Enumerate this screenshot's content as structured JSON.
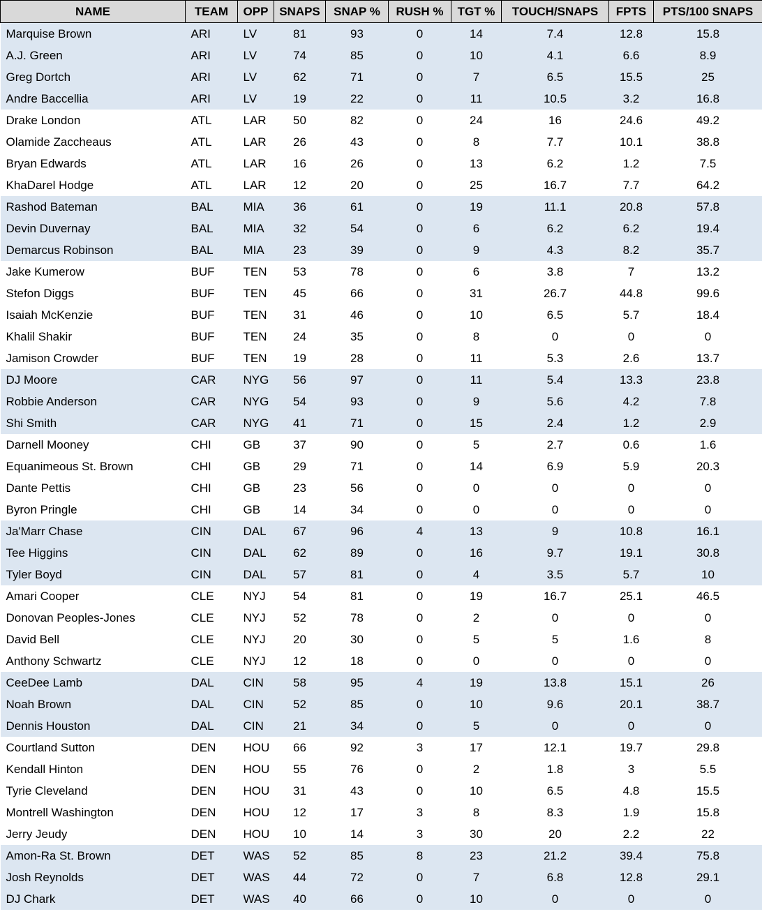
{
  "colors": {
    "header_bg": "#d9d9d9",
    "header_border": "#000000",
    "band_blue": "#dce6f1",
    "band_white": "#ffffff",
    "text": "#000000"
  },
  "table": {
    "columns": [
      {
        "key": "name",
        "label": "NAME"
      },
      {
        "key": "team",
        "label": "TEAM"
      },
      {
        "key": "opp",
        "label": "OPP"
      },
      {
        "key": "snaps",
        "label": "SNAPS"
      },
      {
        "key": "snap_pct",
        "label": "SNAP %"
      },
      {
        "key": "rush_pct",
        "label": "RUSH %"
      },
      {
        "key": "tgt_pct",
        "label": "TGT %"
      },
      {
        "key": "touch_per_snaps",
        "label": "TOUCH/SNAPS"
      },
      {
        "key": "fpts",
        "label": "FPTS"
      },
      {
        "key": "pts_per_100_snaps",
        "label": "PTS/100 SNAPS"
      }
    ],
    "rows": [
      {
        "name": "Marquise Brown",
        "team": "ARI",
        "opp": "LV",
        "snaps": "81",
        "snap_pct": "93",
        "rush_pct": "0",
        "tgt_pct": "14",
        "touch_per_snaps": "7.4",
        "fpts": "12.8",
        "pts_per_100_snaps": "15.8"
      },
      {
        "name": "A.J. Green",
        "team": "ARI",
        "opp": "LV",
        "snaps": "74",
        "snap_pct": "85",
        "rush_pct": "0",
        "tgt_pct": "10",
        "touch_per_snaps": "4.1",
        "fpts": "6.6",
        "pts_per_100_snaps": "8.9"
      },
      {
        "name": "Greg Dortch",
        "team": "ARI",
        "opp": "LV",
        "snaps": "62",
        "snap_pct": "71",
        "rush_pct": "0",
        "tgt_pct": "7",
        "touch_per_snaps": "6.5",
        "fpts": "15.5",
        "pts_per_100_snaps": "25"
      },
      {
        "name": "Andre Baccellia",
        "team": "ARI",
        "opp": "LV",
        "snaps": "19",
        "snap_pct": "22",
        "rush_pct": "0",
        "tgt_pct": "11",
        "touch_per_snaps": "10.5",
        "fpts": "3.2",
        "pts_per_100_snaps": "16.8"
      },
      {
        "name": "Drake London",
        "team": "ATL",
        "opp": "LAR",
        "snaps": "50",
        "snap_pct": "82",
        "rush_pct": "0",
        "tgt_pct": "24",
        "touch_per_snaps": "16",
        "fpts": "24.6",
        "pts_per_100_snaps": "49.2"
      },
      {
        "name": "Olamide Zaccheaus",
        "team": "ATL",
        "opp": "LAR",
        "snaps": "26",
        "snap_pct": "43",
        "rush_pct": "0",
        "tgt_pct": "8",
        "touch_per_snaps": "7.7",
        "fpts": "10.1",
        "pts_per_100_snaps": "38.8"
      },
      {
        "name": "Bryan Edwards",
        "team": "ATL",
        "opp": "LAR",
        "snaps": "16",
        "snap_pct": "26",
        "rush_pct": "0",
        "tgt_pct": "13",
        "touch_per_snaps": "6.2",
        "fpts": "1.2",
        "pts_per_100_snaps": "7.5"
      },
      {
        "name": "KhaDarel Hodge",
        "team": "ATL",
        "opp": "LAR",
        "snaps": "12",
        "snap_pct": "20",
        "rush_pct": "0",
        "tgt_pct": "25",
        "touch_per_snaps": "16.7",
        "fpts": "7.7",
        "pts_per_100_snaps": "64.2"
      },
      {
        "name": "Rashod Bateman",
        "team": "BAL",
        "opp": "MIA",
        "snaps": "36",
        "snap_pct": "61",
        "rush_pct": "0",
        "tgt_pct": "19",
        "touch_per_snaps": "11.1",
        "fpts": "20.8",
        "pts_per_100_snaps": "57.8"
      },
      {
        "name": "Devin Duvernay",
        "team": "BAL",
        "opp": "MIA",
        "snaps": "32",
        "snap_pct": "54",
        "rush_pct": "0",
        "tgt_pct": "6",
        "touch_per_snaps": "6.2",
        "fpts": "6.2",
        "pts_per_100_snaps": "19.4"
      },
      {
        "name": "Demarcus Robinson",
        "team": "BAL",
        "opp": "MIA",
        "snaps": "23",
        "snap_pct": "39",
        "rush_pct": "0",
        "tgt_pct": "9",
        "touch_per_snaps": "4.3",
        "fpts": "8.2",
        "pts_per_100_snaps": "35.7"
      },
      {
        "name": "Jake Kumerow",
        "team": "BUF",
        "opp": "TEN",
        "snaps": "53",
        "snap_pct": "78",
        "rush_pct": "0",
        "tgt_pct": "6",
        "touch_per_snaps": "3.8",
        "fpts": "7",
        "pts_per_100_snaps": "13.2"
      },
      {
        "name": "Stefon Diggs",
        "team": "BUF",
        "opp": "TEN",
        "snaps": "45",
        "snap_pct": "66",
        "rush_pct": "0",
        "tgt_pct": "31",
        "touch_per_snaps": "26.7",
        "fpts": "44.8",
        "pts_per_100_snaps": "99.6"
      },
      {
        "name": "Isaiah McKenzie",
        "team": "BUF",
        "opp": "TEN",
        "snaps": "31",
        "snap_pct": "46",
        "rush_pct": "0",
        "tgt_pct": "10",
        "touch_per_snaps": "6.5",
        "fpts": "5.7",
        "pts_per_100_snaps": "18.4"
      },
      {
        "name": "Khalil Shakir",
        "team": "BUF",
        "opp": "TEN",
        "snaps": "24",
        "snap_pct": "35",
        "rush_pct": "0",
        "tgt_pct": "8",
        "touch_per_snaps": "0",
        "fpts": "0",
        "pts_per_100_snaps": "0"
      },
      {
        "name": "Jamison Crowder",
        "team": "BUF",
        "opp": "TEN",
        "snaps": "19",
        "snap_pct": "28",
        "rush_pct": "0",
        "tgt_pct": "11",
        "touch_per_snaps": "5.3",
        "fpts": "2.6",
        "pts_per_100_snaps": "13.7"
      },
      {
        "name": "DJ Moore",
        "team": "CAR",
        "opp": "NYG",
        "snaps": "56",
        "snap_pct": "97",
        "rush_pct": "0",
        "tgt_pct": "11",
        "touch_per_snaps": "5.4",
        "fpts": "13.3",
        "pts_per_100_snaps": "23.8"
      },
      {
        "name": "Robbie Anderson",
        "team": "CAR",
        "opp": "NYG",
        "snaps": "54",
        "snap_pct": "93",
        "rush_pct": "0",
        "tgt_pct": "9",
        "touch_per_snaps": "5.6",
        "fpts": "4.2",
        "pts_per_100_snaps": "7.8"
      },
      {
        "name": "Shi Smith",
        "team": "CAR",
        "opp": "NYG",
        "snaps": "41",
        "snap_pct": "71",
        "rush_pct": "0",
        "tgt_pct": "15",
        "touch_per_snaps": "2.4",
        "fpts": "1.2",
        "pts_per_100_snaps": "2.9"
      },
      {
        "name": "Darnell Mooney",
        "team": "CHI",
        "opp": "GB",
        "snaps": "37",
        "snap_pct": "90",
        "rush_pct": "0",
        "tgt_pct": "5",
        "touch_per_snaps": "2.7",
        "fpts": "0.6",
        "pts_per_100_snaps": "1.6"
      },
      {
        "name": "Equanimeous St. Brown",
        "team": "CHI",
        "opp": "GB",
        "snaps": "29",
        "snap_pct": "71",
        "rush_pct": "0",
        "tgt_pct": "14",
        "touch_per_snaps": "6.9",
        "fpts": "5.9",
        "pts_per_100_snaps": "20.3"
      },
      {
        "name": "Dante Pettis",
        "team": "CHI",
        "opp": "GB",
        "snaps": "23",
        "snap_pct": "56",
        "rush_pct": "0",
        "tgt_pct": "0",
        "touch_per_snaps": "0",
        "fpts": "0",
        "pts_per_100_snaps": "0"
      },
      {
        "name": "Byron Pringle",
        "team": "CHI",
        "opp": "GB",
        "snaps": "14",
        "snap_pct": "34",
        "rush_pct": "0",
        "tgt_pct": "0",
        "touch_per_snaps": "0",
        "fpts": "0",
        "pts_per_100_snaps": "0"
      },
      {
        "name": "Ja'Marr Chase",
        "team": "CIN",
        "opp": "DAL",
        "snaps": "67",
        "snap_pct": "96",
        "rush_pct": "4",
        "tgt_pct": "13",
        "touch_per_snaps": "9",
        "fpts": "10.8",
        "pts_per_100_snaps": "16.1"
      },
      {
        "name": "Tee Higgins",
        "team": "CIN",
        "opp": "DAL",
        "snaps": "62",
        "snap_pct": "89",
        "rush_pct": "0",
        "tgt_pct": "16",
        "touch_per_snaps": "9.7",
        "fpts": "19.1",
        "pts_per_100_snaps": "30.8"
      },
      {
        "name": "Tyler Boyd",
        "team": "CIN",
        "opp": "DAL",
        "snaps": "57",
        "snap_pct": "81",
        "rush_pct": "0",
        "tgt_pct": "4",
        "touch_per_snaps": "3.5",
        "fpts": "5.7",
        "pts_per_100_snaps": "10"
      },
      {
        "name": "Amari Cooper",
        "team": "CLE",
        "opp": "NYJ",
        "snaps": "54",
        "snap_pct": "81",
        "rush_pct": "0",
        "tgt_pct": "19",
        "touch_per_snaps": "16.7",
        "fpts": "25.1",
        "pts_per_100_snaps": "46.5"
      },
      {
        "name": "Donovan Peoples-Jones",
        "team": "CLE",
        "opp": "NYJ",
        "snaps": "52",
        "snap_pct": "78",
        "rush_pct": "0",
        "tgt_pct": "2",
        "touch_per_snaps": "0",
        "fpts": "0",
        "pts_per_100_snaps": "0"
      },
      {
        "name": "David Bell",
        "team": "CLE",
        "opp": "NYJ",
        "snaps": "20",
        "snap_pct": "30",
        "rush_pct": "0",
        "tgt_pct": "5",
        "touch_per_snaps": "5",
        "fpts": "1.6",
        "pts_per_100_snaps": "8"
      },
      {
        "name": "Anthony Schwartz",
        "team": "CLE",
        "opp": "NYJ",
        "snaps": "12",
        "snap_pct": "18",
        "rush_pct": "0",
        "tgt_pct": "0",
        "touch_per_snaps": "0",
        "fpts": "0",
        "pts_per_100_snaps": "0"
      },
      {
        "name": "CeeDee Lamb",
        "team": "DAL",
        "opp": "CIN",
        "snaps": "58",
        "snap_pct": "95",
        "rush_pct": "4",
        "tgt_pct": "19",
        "touch_per_snaps": "13.8",
        "fpts": "15.1",
        "pts_per_100_snaps": "26"
      },
      {
        "name": "Noah Brown",
        "team": "DAL",
        "opp": "CIN",
        "snaps": "52",
        "snap_pct": "85",
        "rush_pct": "0",
        "tgt_pct": "10",
        "touch_per_snaps": "9.6",
        "fpts": "20.1",
        "pts_per_100_snaps": "38.7"
      },
      {
        "name": "Dennis Houston",
        "team": "DAL",
        "opp": "CIN",
        "snaps": "21",
        "snap_pct": "34",
        "rush_pct": "0",
        "tgt_pct": "5",
        "touch_per_snaps": "0",
        "fpts": "0",
        "pts_per_100_snaps": "0"
      },
      {
        "name": "Courtland Sutton",
        "team": "DEN",
        "opp": "HOU",
        "snaps": "66",
        "snap_pct": "92",
        "rush_pct": "3",
        "tgt_pct": "17",
        "touch_per_snaps": "12.1",
        "fpts": "19.7",
        "pts_per_100_snaps": "29.8"
      },
      {
        "name": "Kendall Hinton",
        "team": "DEN",
        "opp": "HOU",
        "snaps": "55",
        "snap_pct": "76",
        "rush_pct": "0",
        "tgt_pct": "2",
        "touch_per_snaps": "1.8",
        "fpts": "3",
        "pts_per_100_snaps": "5.5"
      },
      {
        "name": "Tyrie Cleveland",
        "team": "DEN",
        "opp": "HOU",
        "snaps": "31",
        "snap_pct": "43",
        "rush_pct": "0",
        "tgt_pct": "10",
        "touch_per_snaps": "6.5",
        "fpts": "4.8",
        "pts_per_100_snaps": "15.5"
      },
      {
        "name": "Montrell Washington",
        "team": "DEN",
        "opp": "HOU",
        "snaps": "12",
        "snap_pct": "17",
        "rush_pct": "3",
        "tgt_pct": "8",
        "touch_per_snaps": "8.3",
        "fpts": "1.9",
        "pts_per_100_snaps": "15.8"
      },
      {
        "name": "Jerry Jeudy",
        "team": "DEN",
        "opp": "HOU",
        "snaps": "10",
        "snap_pct": "14",
        "rush_pct": "3",
        "tgt_pct": "30",
        "touch_per_snaps": "20",
        "fpts": "2.2",
        "pts_per_100_snaps": "22"
      },
      {
        "name": "Amon-Ra St. Brown",
        "team": "DET",
        "opp": "WAS",
        "snaps": "52",
        "snap_pct": "85",
        "rush_pct": "8",
        "tgt_pct": "23",
        "touch_per_snaps": "21.2",
        "fpts": "39.4",
        "pts_per_100_snaps": "75.8"
      },
      {
        "name": "Josh Reynolds",
        "team": "DET",
        "opp": "WAS",
        "snaps": "44",
        "snap_pct": "72",
        "rush_pct": "0",
        "tgt_pct": "7",
        "touch_per_snaps": "6.8",
        "fpts": "12.8",
        "pts_per_100_snaps": "29.1"
      },
      {
        "name": "DJ Chark",
        "team": "DET",
        "opp": "WAS",
        "snaps": "40",
        "snap_pct": "66",
        "rush_pct": "0",
        "tgt_pct": "10",
        "touch_per_snaps": "0",
        "fpts": "0",
        "pts_per_100_snaps": "0"
      }
    ]
  }
}
